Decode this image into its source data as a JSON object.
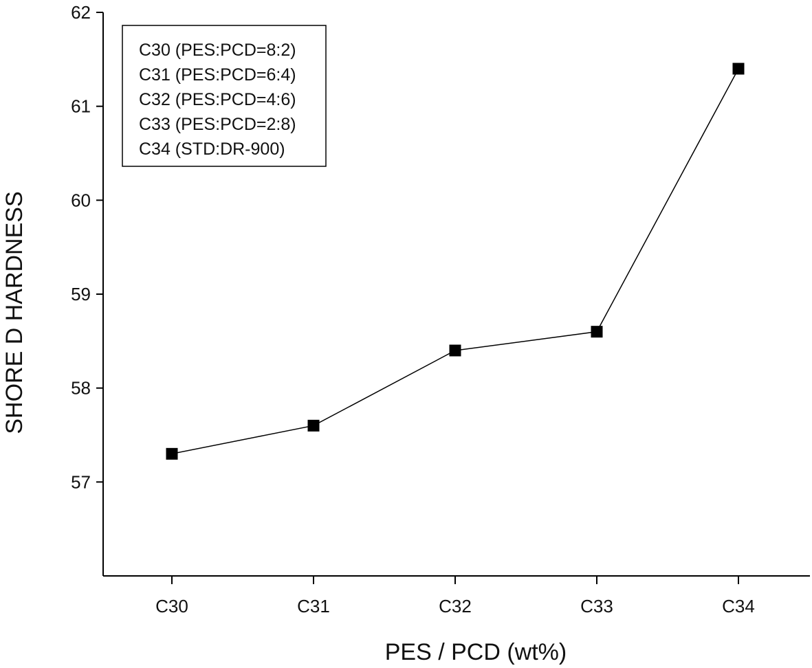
{
  "chart_data": {
    "type": "line",
    "categories": [
      "C30",
      "C31",
      "C32",
      "C33",
      "C34"
    ],
    "series": [
      {
        "values": [
          57.3,
          57.6,
          58.4,
          58.6,
          61.4
        ]
      }
    ],
    "xlabel": "PES / PCD (wt%)",
    "ylabel": "SHORE D HARDNESS",
    "ylim": [
      56.0,
      62.0
    ],
    "yticks": [
      57,
      58,
      59,
      60,
      61,
      62
    ],
    "legend_entries": [
      "C30 (PES:PCD=8:2)",
      "C31 (PES:PCD=6:4)",
      "C32 (PES:PCD=4:6)",
      "C33 (PES:PCD=2:8)",
      "C34 (STD:DR-900)"
    ],
    "legend_position": "top-left",
    "marker": "filled-square",
    "colors": {
      "line": "#000000",
      "marker": "#000000",
      "axis": "#000000"
    },
    "grid": false
  }
}
